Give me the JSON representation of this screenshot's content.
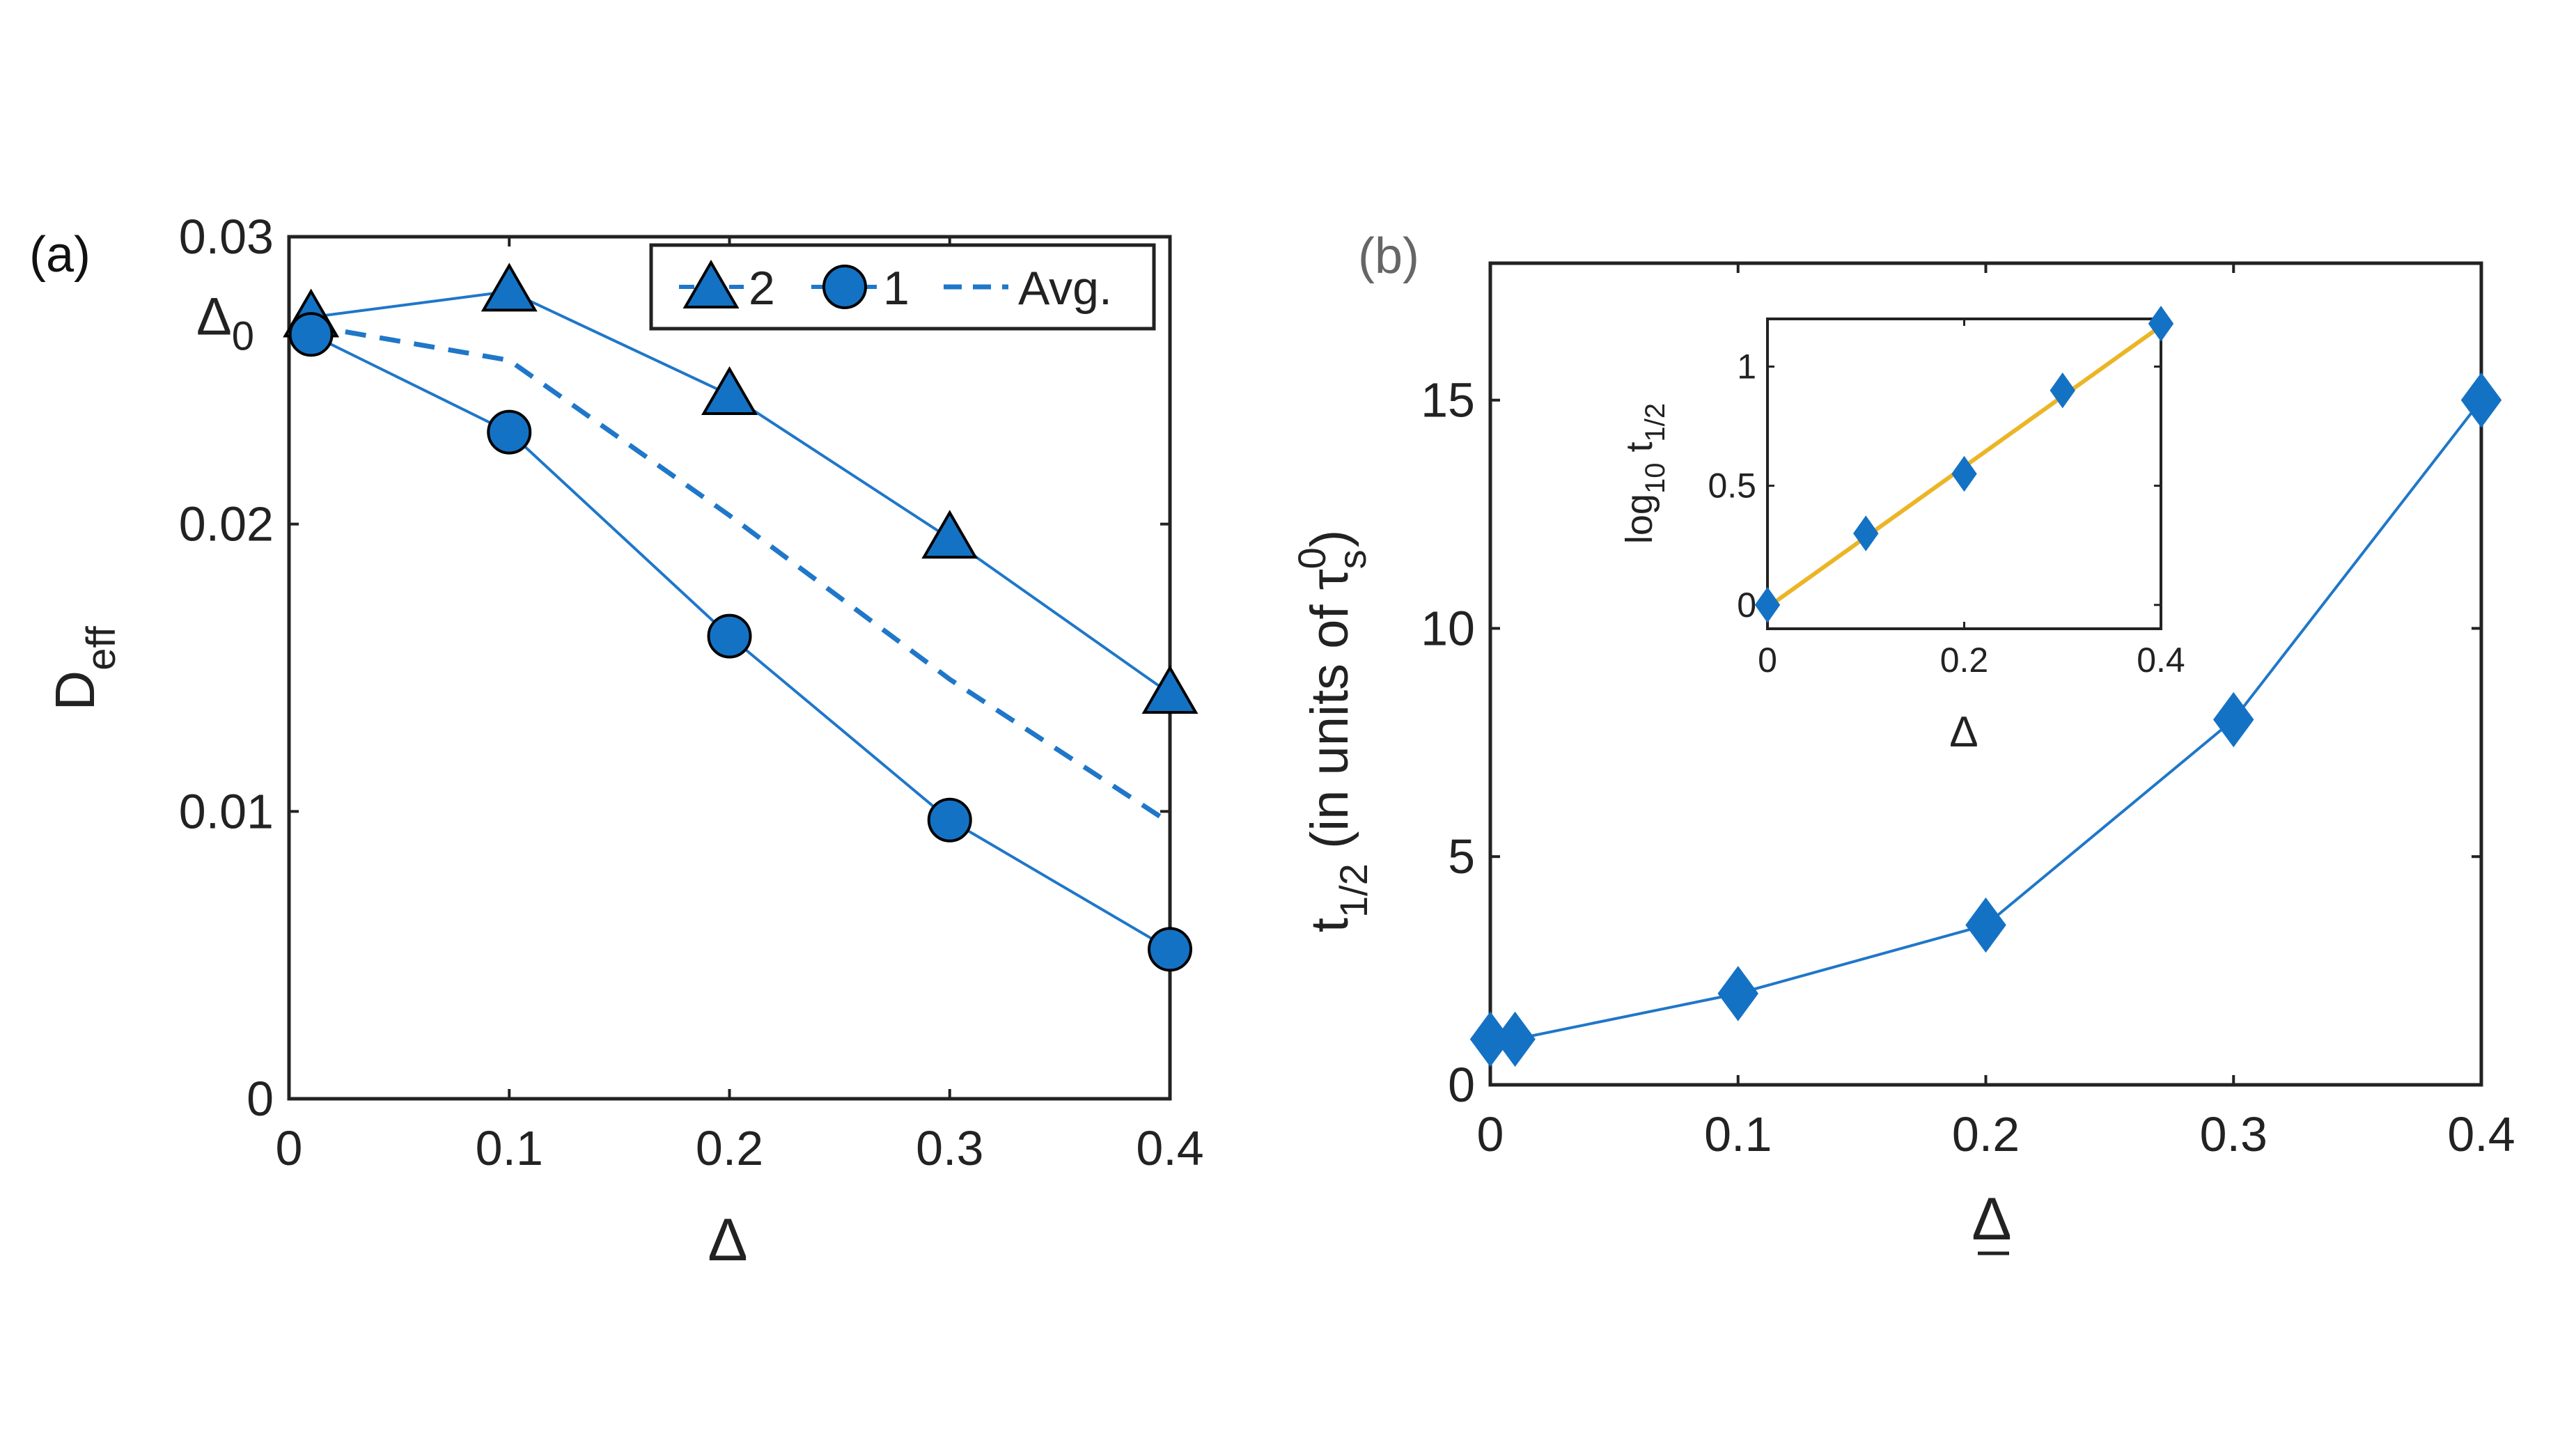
{
  "colors": {
    "series": "#1f77c9",
    "marker": "#1472c4",
    "inset_fit": "#ebb526",
    "axis": "#222222",
    "panel_b": "#666666"
  },
  "chart_data": [
    {
      "panel": "(a)",
      "type": "line",
      "ylabel": "D",
      "ylabel_sub": "eff",
      "xlabel": "Δ",
      "xlim": [
        0,
        0.4
      ],
      "ylim": [
        0,
        0.03
      ],
      "xticks": [
        "0",
        "0.1",
        "0.2",
        "0.3",
        "0.4"
      ],
      "yticks": [
        "0",
        "0.01",
        "0.02",
        "0.03"
      ],
      "ytick_values": [
        0,
        0.01,
        0.02,
        0.03
      ],
      "xtick_values": [
        0,
        0.1,
        0.2,
        0.3,
        0.4
      ],
      "annotation": {
        "text": "Δ",
        "sub": "0",
        "y": 0.0272
      },
      "legend": [
        "2",
        "1",
        "Avg."
      ],
      "series": [
        {
          "name": "2",
          "marker": "triangle",
          "style": "solid",
          "x": [
            0.01,
            0.1,
            0.2,
            0.3,
            0.4
          ],
          "y": [
            0.0272,
            0.0281,
            0.0245,
            0.0195,
            0.0141
          ]
        },
        {
          "name": "1",
          "marker": "circle",
          "style": "solid",
          "x": [
            0.01,
            0.1,
            0.2,
            0.3,
            0.4
          ],
          "y": [
            0.0266,
            0.0232,
            0.0161,
            0.0097,
            0.0052
          ]
        },
        {
          "name": "Avg.",
          "marker": "none",
          "style": "dashed",
          "x": [
            0.01,
            0.1,
            0.2,
            0.3,
            0.4
          ],
          "y": [
            0.0269,
            0.0257,
            0.0203,
            0.0146,
            0.0096
          ]
        }
      ]
    },
    {
      "panel": "(b)",
      "type": "line",
      "ylabel": "t",
      "ylabel_sub": "1/2",
      "ylabel_rest": " (in units of τ",
      "ylabel_sub2": "s",
      "ylabel_sup2": "0",
      "ylabel_end": ")",
      "xlabel": "Δ",
      "xlim": [
        0,
        0.4
      ],
      "ylim": [
        0,
        18
      ],
      "xticks": [
        "0",
        "0.1",
        "0.2",
        "0.3",
        "0.4"
      ],
      "yticks": [
        "0",
        "5",
        "10",
        "15"
      ],
      "ytick_values": [
        0,
        5,
        10,
        15
      ],
      "xtick_values": [
        0,
        0.1,
        0.2,
        0.3,
        0.4
      ],
      "series": [
        {
          "name": "t1/2",
          "marker": "diamond",
          "x": [
            0,
            0.01,
            0.1,
            0.2,
            0.3,
            0.4
          ],
          "y": [
            1.0,
            1.0,
            2.0,
            3.5,
            8.0,
            15.0
          ]
        }
      ],
      "inset": {
        "type": "line",
        "ylabel": "log",
        "ylabel_sub": "10",
        "ylabel_rest": " t",
        "ylabel_sub2": "1/2",
        "xlabel": "Δ",
        "xlim": [
          0,
          0.4
        ],
        "ylim": [
          -0.1,
          1.2
        ],
        "xticks": [
          "0",
          "0.2",
          "0.4"
        ],
        "yticks": [
          "0",
          "0.5",
          "1"
        ],
        "ytick_values": [
          0,
          0.5,
          1
        ],
        "xtick_values": [
          0,
          0.2,
          0.4
        ],
        "points": {
          "x": [
            0,
            0.1,
            0.2,
            0.3,
            0.4
          ],
          "y": [
            0.0,
            0.3,
            0.55,
            0.9,
            1.18
          ]
        },
        "fit": {
          "x": [
            0,
            0.4
          ],
          "y": [
            -0.01,
            1.17
          ]
        }
      }
    }
  ]
}
